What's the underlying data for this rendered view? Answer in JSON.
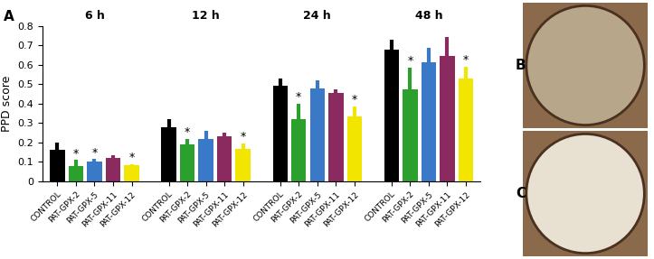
{
  "panel_labels": [
    "A",
    "B",
    "C"
  ],
  "chart_data": {
    "type": "bar",
    "y_label": "PPD score",
    "categories": [
      "6 h",
      "12 h",
      "24 h",
      "48 h"
    ],
    "series": [
      {
        "name": "CONTROL",
        "color": "#000000",
        "values": [
          0.16,
          0.28,
          0.49,
          0.68
        ],
        "errors": [
          0.04,
          0.04,
          0.04,
          0.05
        ]
      },
      {
        "name": "PAT-GPX-2",
        "color": "#2ca02c",
        "values": [
          0.08,
          0.19,
          0.32,
          0.475
        ],
        "errors": [
          0.03,
          0.03,
          0.08,
          0.11
        ]
      },
      {
        "name": "PAT-GPX-5",
        "color": "#3a78c8",
        "values": [
          0.1,
          0.22,
          0.48,
          0.615
        ],
        "errors": [
          0.015,
          0.04,
          0.04,
          0.07
        ]
      },
      {
        "name": "PAT-GPX-11",
        "color": "#8b2a5e",
        "values": [
          0.12,
          0.23,
          0.455,
          0.645
        ],
        "errors": [
          0.015,
          0.02,
          0.02,
          0.1
        ]
      },
      {
        "name": "PAT-GPX-12",
        "color": "#f2e600",
        "values": [
          0.085,
          0.165,
          0.335,
          0.53
        ],
        "errors": [
          0.005,
          0.03,
          0.05,
          0.06
        ]
      }
    ],
    "annotations": [
      {
        "text": "*",
        "category": "6 h",
        "series": "PAT-GPX-2"
      },
      {
        "text": "*",
        "category": "6 h",
        "series": "PAT-GPX-5"
      },
      {
        "text": "*",
        "category": "6 h",
        "series": "PAT-GPX-12"
      },
      {
        "text": "*",
        "category": "12 h",
        "series": "PAT-GPX-2"
      },
      {
        "text": "*",
        "category": "12 h",
        "series": "PAT-GPX-12"
      },
      {
        "text": "*",
        "category": "24 h",
        "series": "PAT-GPX-2"
      },
      {
        "text": "*",
        "category": "24 h",
        "series": "PAT-GPX-12"
      },
      {
        "text": "*",
        "category": "48 h",
        "series": "PAT-GPX-2"
      },
      {
        "text": "*",
        "category": "48 h",
        "series": "PAT-GPX-12"
      }
    ],
    "ylim": [
      0,
      0.8
    ],
    "yticks": [
      0,
      0.1,
      0.2,
      0.3,
      0.4,
      0.5,
      0.6,
      0.7,
      0.8
    ],
    "grid": false
  }
}
